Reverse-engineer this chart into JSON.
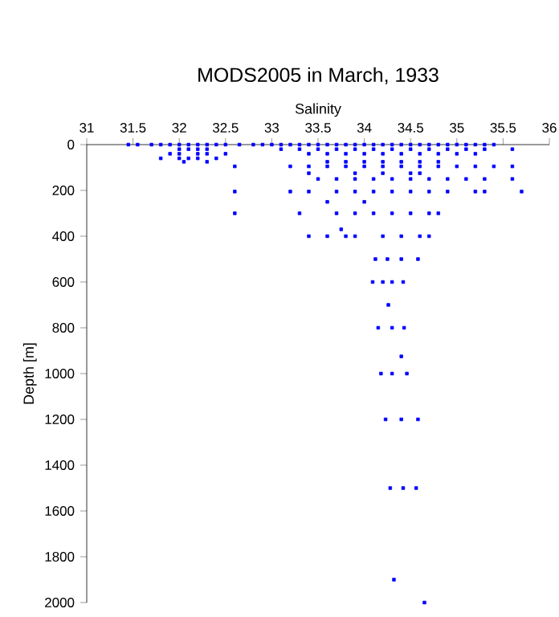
{
  "chart_data": {
    "type": "scatter",
    "title": "MODS2005 in March, 1933",
    "xlabel": "Salinity",
    "ylabel": "Depth [m]",
    "xlim": [
      31,
      36
    ],
    "ylim": [
      2000,
      0
    ],
    "xticks": [
      31,
      31.5,
      32,
      32.5,
      33,
      33.5,
      34,
      34.5,
      35,
      35.5,
      36
    ],
    "yticks": [
      0,
      200,
      400,
      600,
      800,
      1000,
      1200,
      1400,
      1600,
      1800,
      2000
    ],
    "marker": "square",
    "series": [
      {
        "color": "#0000ff",
        "x": [
          31.45,
          31.55,
          31.7,
          31.8,
          31.9,
          32.0,
          32.1,
          32.2,
          32.3,
          32.4,
          32.5,
          32.65,
          32.8,
          32.9,
          33.0,
          33.1,
          33.2,
          33.3,
          33.4,
          33.5,
          33.6,
          33.7,
          33.8,
          33.9,
          34.0,
          34.1,
          34.2,
          34.3,
          34.4,
          34.5,
          34.6,
          34.7,
          34.8,
          34.9,
          35.0,
          35.1,
          35.2,
          35.3,
          35.4,
          32.0,
          32.1,
          32.2,
          32.3,
          33.1,
          33.3,
          33.5,
          33.7,
          33.9,
          34.1,
          34.3,
          34.5,
          34.7,
          34.9,
          35.1,
          35.3,
          35.6,
          31.9,
          32.0,
          32.2,
          32.3,
          32.5,
          33.4,
          33.6,
          33.8,
          34.0,
          34.2,
          34.4,
          34.6,
          34.8,
          35.0,
          35.2,
          31.8,
          32.0,
          32.1,
          32.2,
          32.4,
          32.05,
          32.3,
          33.6,
          33.8,
          34.0,
          34.2,
          34.4,
          34.6,
          34.8,
          32.6,
          33.2,
          33.4,
          33.6,
          33.8,
          34.0,
          34.2,
          34.4,
          34.6,
          34.8,
          35.0,
          35.2,
          35.4,
          35.6,
          33.4,
          33.9,
          34.2,
          34.5,
          34.6,
          33.5,
          33.7,
          33.9,
          34.1,
          34.3,
          34.5,
          34.7,
          34.9,
          35.1,
          35.3,
          35.6,
          32.6,
          33.2,
          33.4,
          33.7,
          33.9,
          34.1,
          34.3,
          34.5,
          34.7,
          34.9,
          35.2,
          35.3,
          35.7,
          33.6,
          34.0,
          32.6,
          33.3,
          33.7,
          33.9,
          34.1,
          34.3,
          34.5,
          34.7,
          34.8,
          33.75,
          33.4,
          33.6,
          33.8,
          33.9,
          34.2,
          34.4,
          34.6,
          34.7,
          34.12,
          34.25,
          34.4,
          34.58,
          34.09,
          34.2,
          34.3,
          34.42,
          34.26,
          34.15,
          34.3,
          34.43,
          34.4,
          34.18,
          34.3,
          34.46,
          34.23,
          34.4,
          34.58,
          34.28,
          34.42,
          34.56,
          34.32,
          34.65
        ],
        "values": [
          0,
          0,
          0,
          0,
          0,
          0,
          0,
          0,
          0,
          0,
          0,
          0,
          0,
          0,
          0,
          0,
          0,
          0,
          0,
          0,
          0,
          0,
          0,
          0,
          0,
          0,
          0,
          0,
          0,
          0,
          0,
          0,
          0,
          0,
          0,
          0,
          0,
          0,
          0,
          20,
          20,
          20,
          20,
          20,
          20,
          20,
          20,
          20,
          20,
          20,
          20,
          20,
          20,
          20,
          20,
          20,
          40,
          40,
          40,
          40,
          40,
          40,
          40,
          40,
          40,
          40,
          40,
          40,
          40,
          40,
          40,
          60,
          60,
          60,
          60,
          60,
          75,
          75,
          75,
          75,
          75,
          75,
          75,
          75,
          75,
          95,
          95,
          95,
          95,
          95,
          95,
          95,
          95,
          95,
          95,
          95,
          95,
          95,
          95,
          125,
          125,
          125,
          125,
          125,
          150,
          150,
          150,
          150,
          150,
          150,
          150,
          150,
          150,
          150,
          150,
          205,
          205,
          205,
          205,
          205,
          205,
          205,
          205,
          205,
          205,
          205,
          205,
          205,
          250,
          250,
          300,
          300,
          300,
          300,
          300,
          300,
          300,
          300,
          300,
          370,
          400,
          400,
          400,
          400,
          400,
          400,
          400,
          400,
          500,
          500,
          500,
          500,
          600,
          600,
          600,
          600,
          700,
          800,
          800,
          800,
          925,
          1000,
          1000,
          1000,
          1200,
          1200,
          1200,
          1500,
          1500,
          1500,
          1900,
          2000
        ]
      }
    ]
  }
}
